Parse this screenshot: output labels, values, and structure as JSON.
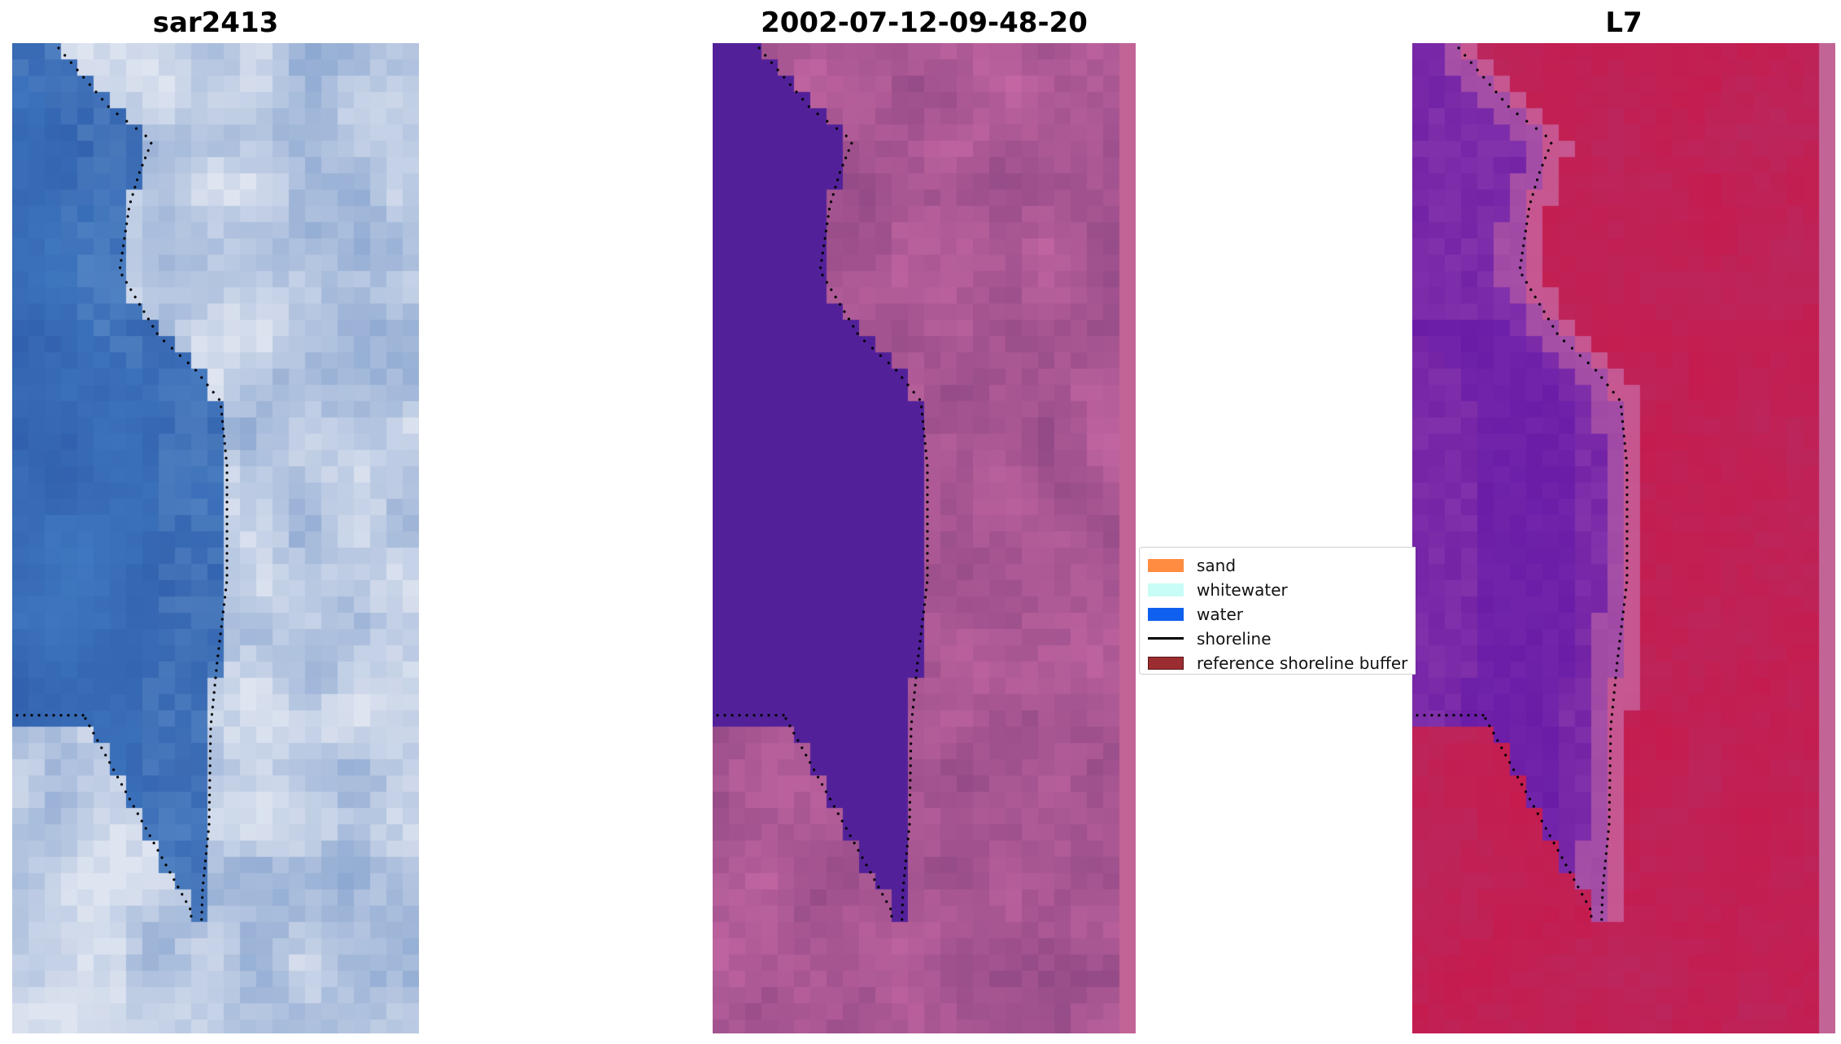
{
  "panels": [
    {
      "title": "sar2413"
    },
    {
      "title": "2002-07-12-09-48-20"
    },
    {
      "title": "L7"
    }
  ],
  "legend": {
    "items": [
      {
        "label": "sand",
        "color": "#ff8c40",
        "kind": "patch"
      },
      {
        "label": "whitewater",
        "color": "#c8fdf6",
        "kind": "patch"
      },
      {
        "label": "water",
        "color": "#1060f0",
        "kind": "patch"
      },
      {
        "label": "shoreline",
        "color": "#000000",
        "kind": "line"
      },
      {
        "label": "reference shoreline buffer",
        "color": "#9b2d30",
        "kind": "patch"
      }
    ]
  },
  "colors": {
    "water_rgb": "#3565b5",
    "whitewater_rgb": "#d0d8ea",
    "water_class": "#52219a",
    "land_class": "#a0508f",
    "water_index_low": "#7a23a8",
    "water_index_high": "#c5184c"
  }
}
